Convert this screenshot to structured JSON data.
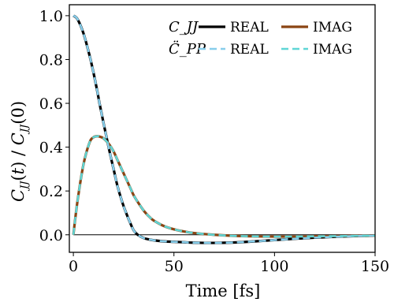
{
  "chart_data": {
    "type": "line",
    "title": "",
    "xlabel": "Time [fs]",
    "ylabel": "C_JJ(t) / C_JJ(0)",
    "xlim": [
      -2,
      150
    ],
    "ylim": [
      -0.08,
      1.05
    ],
    "xticks": [
      "0",
      "50",
      "100",
      "150"
    ],
    "yticks": [
      "0.0",
      "0.2",
      "0.4",
      "0.6",
      "0.8",
      "1.0"
    ],
    "zero_line": true,
    "grid": false,
    "legend_placement": "top-right",
    "legend_rows": [
      {
        "prefix": "C_JJ",
        "entries": [
          "REAL",
          "IMAG"
        ]
      },
      {
        "prefix": "C̈_PP",
        "entries": [
          "REAL",
          "IMAG"
        ]
      }
    ],
    "x": [
      0,
      2,
      5,
      8,
      10,
      12,
      13,
      15,
      18,
      20,
      22,
      25,
      28,
      30,
      32,
      35,
      38,
      40,
      45,
      50,
      55,
      60,
      70,
      80,
      90,
      100,
      110,
      120,
      130,
      140,
      150
    ],
    "series": [
      {
        "name": "REAL",
        "group": "C_JJ",
        "color": "#000000",
        "dash": "solid",
        "values": [
          1.0,
          0.985,
          0.92,
          0.82,
          0.74,
          0.65,
          0.6,
          0.51,
          0.38,
          0.3,
          0.22,
          0.13,
          0.06,
          0.02,
          0.0,
          -0.015,
          -0.022,
          -0.025,
          -0.03,
          -0.032,
          -0.034,
          -0.036,
          -0.037,
          -0.035,
          -0.03,
          -0.024,
          -0.018,
          -0.013,
          -0.009,
          -0.006,
          -0.004
        ]
      },
      {
        "name": "IMAG",
        "group": "C_JJ",
        "color": "#8B4513",
        "dash": "solid",
        "values": [
          0.0,
          0.15,
          0.32,
          0.42,
          0.445,
          0.45,
          0.448,
          0.44,
          0.41,
          0.38,
          0.34,
          0.28,
          0.22,
          0.18,
          0.15,
          0.11,
          0.08,
          0.065,
          0.04,
          0.025,
          0.015,
          0.008,
          0.0,
          -0.005,
          -0.007,
          -0.008,
          -0.008,
          -0.007,
          -0.006,
          -0.005,
          -0.004
        ]
      },
      {
        "name": "REAL",
        "group": "C̈_PP",
        "color": "#87CEEB",
        "dash": "dashed",
        "values": [
          1.0,
          0.985,
          0.92,
          0.82,
          0.74,
          0.65,
          0.6,
          0.51,
          0.38,
          0.3,
          0.22,
          0.13,
          0.06,
          0.02,
          0.0,
          -0.015,
          -0.022,
          -0.025,
          -0.03,
          -0.032,
          -0.034,
          -0.036,
          -0.037,
          -0.035,
          -0.03,
          -0.024,
          -0.018,
          -0.013,
          -0.009,
          -0.006,
          -0.004
        ]
      },
      {
        "name": "IMAG",
        "group": "C̈_PP",
        "color": "#5FD6D6",
        "dash": "dashed",
        "values": [
          0.0,
          0.15,
          0.32,
          0.42,
          0.445,
          0.45,
          0.448,
          0.44,
          0.41,
          0.38,
          0.34,
          0.28,
          0.22,
          0.18,
          0.15,
          0.11,
          0.08,
          0.065,
          0.04,
          0.025,
          0.015,
          0.008,
          0.0,
          -0.005,
          -0.007,
          -0.008,
          -0.008,
          -0.007,
          -0.006,
          -0.005,
          -0.004
        ]
      }
    ]
  }
}
